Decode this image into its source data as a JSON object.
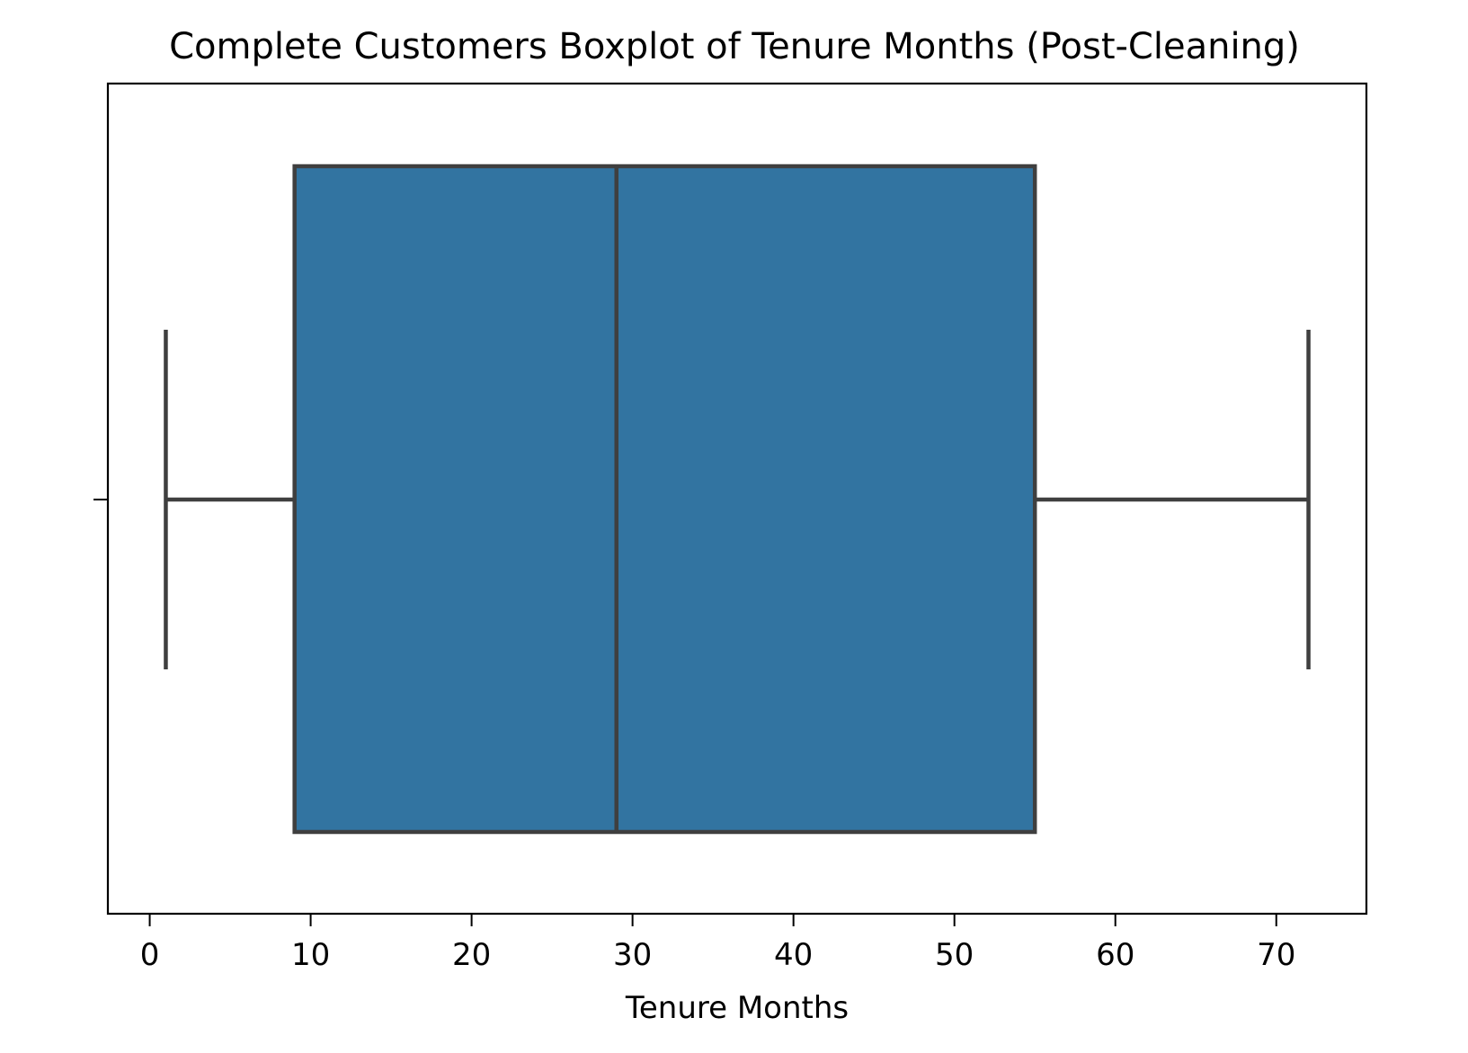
{
  "chart_data": {
    "type": "boxplot",
    "title": "Complete Customers Boxplot of Tenure Months (Post-Cleaning)",
    "xlabel": "Tenure Months",
    "ylabel": "",
    "orientation": "horizontal",
    "xlim": [
      -2.6,
      75.6
    ],
    "x_ticks": [
      0,
      10,
      20,
      30,
      40,
      50,
      60,
      70
    ],
    "x_tick_labels": [
      "0",
      "10",
      "20",
      "30",
      "40",
      "50",
      "60",
      "70"
    ],
    "grid": false,
    "legend": "none",
    "box_color": "#3274a1",
    "line_color": "#3f3f3f",
    "boxes": [
      {
        "whisker_low": 1,
        "q1": 9,
        "median": 29,
        "q3": 55,
        "whisker_high": 72
      }
    ]
  }
}
